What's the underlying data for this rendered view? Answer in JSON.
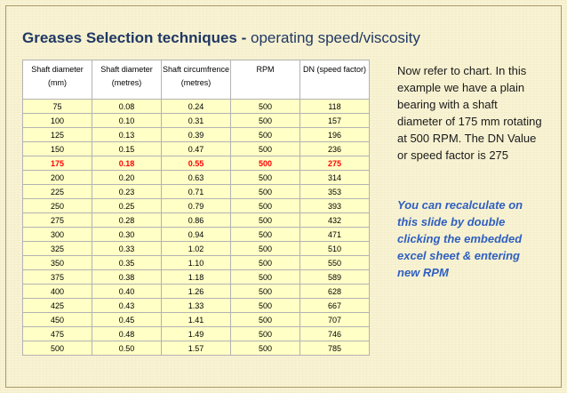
{
  "title": {
    "bold": "Greases Selection techniques - ",
    "normal": "operating speed/viscosity"
  },
  "table": {
    "headers": [
      "Shaft diameter (mm)",
      "Shaft diameter (metres)",
      "Shaft circumfrence (metres)",
      "RPM",
      "DN (speed factor)"
    ],
    "rows": [
      [
        "75",
        "0.08",
        "0.24",
        "500",
        "118"
      ],
      [
        "100",
        "0.10",
        "0.31",
        "500",
        "157"
      ],
      [
        "125",
        "0.13",
        "0.39",
        "500",
        "196"
      ],
      [
        "150",
        "0.15",
        "0.47",
        "500",
        "236"
      ],
      [
        "175",
        "0.18",
        "0.55",
        "500",
        "275"
      ],
      [
        "200",
        "0.20",
        "0.63",
        "500",
        "314"
      ],
      [
        "225",
        "0.23",
        "0.71",
        "500",
        "353"
      ],
      [
        "250",
        "0.25",
        "0.79",
        "500",
        "393"
      ],
      [
        "275",
        "0.28",
        "0.86",
        "500",
        "432"
      ],
      [
        "300",
        "0.30",
        "0.94",
        "500",
        "471"
      ],
      [
        "325",
        "0.33",
        "1.02",
        "500",
        "510"
      ],
      [
        "350",
        "0.35",
        "1.10",
        "500",
        "550"
      ],
      [
        "375",
        "0.38",
        "1.18",
        "500",
        "589"
      ],
      [
        "400",
        "0.40",
        "1.26",
        "500",
        "628"
      ],
      [
        "425",
        "0.43",
        "1.33",
        "500",
        "667"
      ],
      [
        "450",
        "0.45",
        "1.41",
        "500",
        "707"
      ],
      [
        "475",
        "0.48",
        "1.49",
        "500",
        "746"
      ],
      [
        "500",
        "0.50",
        "1.57",
        "500",
        "785"
      ]
    ],
    "highlight_row_value": "175",
    "highlight_color": "#ff0000",
    "cell_fill_color": "#ffffc6"
  },
  "notes": {
    "paragraph1": "Now refer to chart.  In this example we have a plain bearing with a shaft diameter of 175 mm rotating at 500 RPM. The DN Value or speed factor is 275",
    "paragraph2": "You can recalculate on this slide by double clicking the embedded excel sheet & entering new RPM"
  }
}
